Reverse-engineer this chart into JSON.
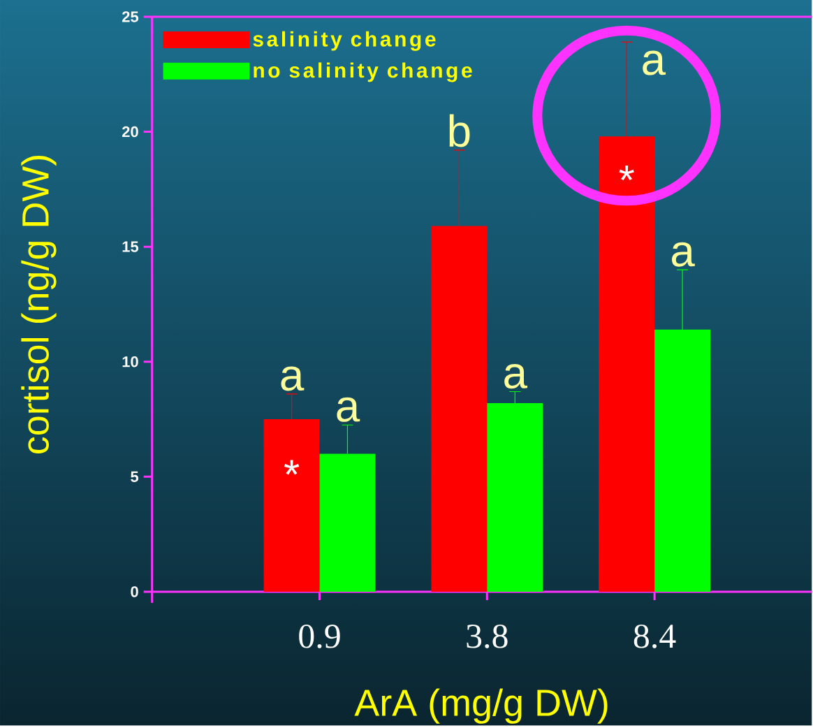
{
  "chart_data": {
    "type": "bar",
    "xlabel": "ArA (mg/g DW)",
    "ylabel": "cortisol (ng/g DW)",
    "categories": [
      "0.9",
      "3.8",
      "8.4"
    ],
    "series": [
      {
        "name": "salinity change",
        "color": "#ff0000",
        "values": [
          7.5,
          15.9,
          19.8
        ],
        "errors": [
          [
            7.5,
            8.6
          ],
          [
            15.9,
            19.2
          ],
          [
            19.8,
            23.9
          ]
        ],
        "value_labels": [
          "a",
          "b",
          "a"
        ]
      },
      {
        "name": "no salinity change",
        "color": "#00ff00",
        "values": [
          6.0,
          8.2,
          11.4
        ],
        "errors": [
          [
            6.0,
            7.25
          ],
          [
            8.2,
            8.7
          ],
          [
            11.4,
            14.0
          ]
        ],
        "value_labels": [
          "a",
          "a",
          "a"
        ]
      }
    ],
    "ylim": [
      0,
      25
    ],
    "yticks": [
      0,
      5,
      10,
      15,
      20,
      25
    ],
    "grid": false,
    "legend": "top left",
    "annotations": [
      {
        "text": "*",
        "x": "0.9",
        "y": 5.1
      },
      {
        "text": "*",
        "x": "8.4",
        "y": 17.9
      }
    ]
  }
}
